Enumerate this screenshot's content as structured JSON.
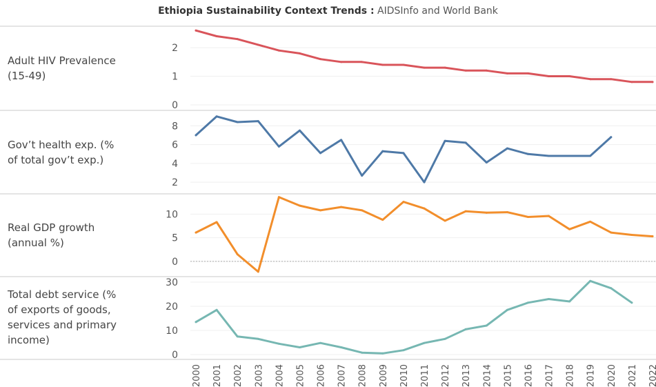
{
  "title": {
    "bold": "Ethiopia Sustainability Context Trends :",
    "light": " AIDSInfo and World Bank"
  },
  "colors": {
    "hiv": "#d9545a",
    "health": "#4e79a7",
    "gdp": "#f28e2b",
    "debt": "#76b7b2",
    "grid": "#efefef",
    "divider": "#c8c8c8",
    "axis_text": "#555555"
  },
  "chart_data": [
    {
      "type": "line",
      "key": "hiv",
      "label_lines": [
        "Adult HIV Prevalence",
        "(15-49)"
      ],
      "x": [
        2000,
        2001,
        2002,
        2003,
        2004,
        2005,
        2006,
        2007,
        2008,
        2009,
        2010,
        2011,
        2012,
        2013,
        2014,
        2015,
        2016,
        2017,
        2018,
        2019,
        2020,
        2021,
        2022
      ],
      "values": [
        2.6,
        2.4,
        2.3,
        2.1,
        1.9,
        1.8,
        1.6,
        1.5,
        1.5,
        1.4,
        1.4,
        1.3,
        1.3,
        1.2,
        1.2,
        1.1,
        1.1,
        1.0,
        1.0,
        0.9,
        0.9,
        0.8,
        0.8
      ],
      "ylim": [
        0,
        2.75
      ],
      "yticks": [
        0,
        1,
        2
      ]
    },
    {
      "type": "line",
      "key": "health",
      "label_lines": [
        "Gov’t health exp. (%",
        "of total gov’t exp.)"
      ],
      "x": [
        2000,
        2001,
        2002,
        2003,
        2004,
        2005,
        2006,
        2007,
        2008,
        2009,
        2010,
        2011,
        2012,
        2013,
        2014,
        2015,
        2016,
        2017,
        2018,
        2019,
        2020
      ],
      "values": [
        7.0,
        9.0,
        8.4,
        8.5,
        5.8,
        7.5,
        5.1,
        6.5,
        2.7,
        5.3,
        5.1,
        2.0,
        6.4,
        6.2,
        4.1,
        5.6,
        5.0,
        4.8,
        4.8,
        4.8,
        6.8
      ],
      "ylim": [
        1.2,
        9.5
      ],
      "yticks": [
        2,
        4,
        6,
        8
      ]
    },
    {
      "type": "line",
      "key": "gdp",
      "label_lines": [
        "Real GDP growth",
        "(annual %)"
      ],
      "x": [
        2000,
        2001,
        2002,
        2003,
        2004,
        2005,
        2006,
        2007,
        2008,
        2009,
        2010,
        2011,
        2012,
        2013,
        2014,
        2015,
        2016,
        2017,
        2018,
        2019,
        2020,
        2021,
        2022
      ],
      "values": [
        6.1,
        8.3,
        1.5,
        -2.2,
        13.6,
        11.8,
        10.8,
        11.5,
        10.8,
        8.8,
        12.6,
        11.2,
        8.6,
        10.6,
        10.3,
        10.4,
        9.4,
        9.6,
        6.8,
        8.4,
        6.1,
        5.6,
        5.3
      ],
      "ylim": [
        -2.8,
        14.0
      ],
      "yticks": [
        0,
        5,
        10
      ],
      "zero_line": true
    },
    {
      "type": "line",
      "key": "debt",
      "label_lines": [
        "Total debt service (%",
        "of exports of goods,",
        "services and primary",
        "income)"
      ],
      "x": [
        2000,
        2001,
        2002,
        2003,
        2004,
        2005,
        2006,
        2007,
        2008,
        2009,
        2010,
        2011,
        2012,
        2013,
        2014,
        2015,
        2016,
        2017,
        2018,
        2019,
        2020,
        2021
      ],
      "values": [
        13.5,
        18.5,
        7.5,
        6.5,
        4.5,
        3.0,
        4.8,
        3.0,
        0.8,
        0.5,
        1.8,
        4.8,
        6.5,
        10.5,
        12.0,
        18.5,
        21.5,
        23.0,
        22.0,
        30.5,
        27.5,
        21.5
      ],
      "ylim": [
        -2.0,
        32.0
      ],
      "yticks": [
        0,
        10,
        20,
        30
      ]
    }
  ],
  "x_axis": {
    "tick_labels": [
      "2000",
      "2001",
      "2002",
      "2003",
      "2004",
      "2005",
      "2006",
      "2007",
      "2008",
      "2009",
      "2010",
      "2011",
      "2012",
      "2013",
      "2014",
      "2015",
      "2016",
      "2017",
      "2018",
      "2019",
      "2020",
      "2021",
      "2022"
    ]
  }
}
